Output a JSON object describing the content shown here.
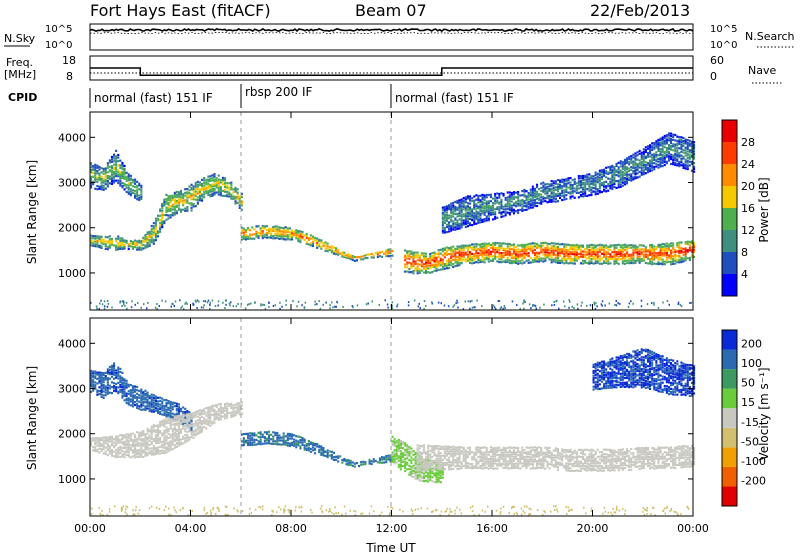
{
  "header": {
    "station": "Fort Hays East (fitACF)",
    "beam": "Beam 07",
    "date": "22/Feb/2013"
  },
  "summary": {
    "nsky_label": "N.Sky",
    "nsky_ticks": [
      "10^5",
      "10^0"
    ],
    "nsearch_label": "N.Search",
    "nsearch_ticks": [
      "10^5",
      "10^0"
    ],
    "freq_label_line1": "Freq.",
    "freq_label_line2": "[MHz]",
    "freq_ticks": [
      "18",
      "8"
    ],
    "nave_label": "Nave",
    "nave_ticks": [
      "60",
      "0"
    ],
    "cpid_label": "CPID",
    "cpid_segments": [
      {
        "label": "normal (fast) 151 IF",
        "start_hour": 0,
        "end_hour": 6
      },
      {
        "label": "rbsp 200 IF",
        "start_hour": 6,
        "end_hour": 12
      },
      {
        "label": "normal (fast) 151 IF",
        "start_hour": 12,
        "end_hour": 24
      }
    ],
    "freq_series": {
      "name": "Freq.",
      "hours": [
        0,
        2,
        2,
        12,
        14,
        14,
        24
      ],
      "values_mhz": [
        13,
        13,
        10,
        10,
        10,
        13,
        13
      ]
    }
  },
  "colors": {
    "power": [
      "#0000ff",
      "#1f4fbf",
      "#3f8f7f",
      "#4faf4f",
      "#f5c800",
      "#ff8c00",
      "#ff3c00",
      "#e80000"
    ],
    "velocity": [
      "#0a2ad6",
      "#2a6ab0",
      "#3c9a60",
      "#6acc3c",
      "#c8c8c0",
      "#d0c070",
      "#f0a000",
      "#f06000",
      "#e00000"
    ]
  },
  "chart_data": [
    {
      "type": "heatmap",
      "ylabel": "Slant Range [km]",
      "xlabel": "Time UT",
      "x_ticks": [
        "00:00",
        "04:00",
        "08:00",
        "12:00",
        "16:00",
        "20:00",
        "00:00"
      ],
      "y_ticks": [
        "1000",
        "2000",
        "3000",
        "4000"
      ],
      "xlim_hours": [
        0,
        24
      ],
      "ylim_km": [
        180,
        4560
      ],
      "colorbar": {
        "label": "Power [dB]",
        "ticks": [
          "28",
          "24",
          "20",
          "16",
          "12",
          "8",
          "4"
        ],
        "range": [
          0,
          30
        ]
      },
      "bands": [
        {
          "name": "evening",
          "hours": [
            0,
            0.5,
            1,
            1.5,
            2,
            2.5,
            3,
            3.5,
            4,
            4.5,
            5,
            5.5,
            6
          ],
          "center_km": [
            1750,
            1700,
            1700,
            1650,
            1650,
            1900,
            2500,
            2600,
            2700,
            2900,
            3000,
            2900,
            2600
          ],
          "width_km": [
            250,
            300,
            350,
            200,
            250,
            500,
            600,
            500,
            600,
            500,
            500,
            400,
            400
          ],
          "value_db": 18
        },
        {
          "name": "upper-evening",
          "hours": [
            0,
            0.5,
            1,
            1.5,
            2
          ],
          "center_km": [
            3200,
            3100,
            3400,
            3000,
            2800
          ],
          "width_km": [
            600,
            500,
            700,
            500,
            400
          ],
          "value_db": 14
        },
        {
          "name": "morning-arc",
          "hours": [
            6,
            7,
            8,
            9,
            10,
            10.5,
            11,
            11.5,
            12
          ],
          "center_km": [
            1900,
            1950,
            1900,
            1700,
            1450,
            1350,
            1400,
            1450,
            1500
          ],
          "width_km": [
            300,
            300,
            300,
            250,
            150,
            120,
            120,
            150,
            200
          ],
          "value_db": 22
        },
        {
          "name": "main-band",
          "hours": [
            12.5,
            13,
            13.5,
            14,
            15,
            16,
            17,
            18,
            19,
            20,
            21,
            22,
            23,
            24
          ],
          "center_km": [
            1300,
            1250,
            1250,
            1350,
            1450,
            1500,
            1450,
            1500,
            1450,
            1450,
            1450,
            1450,
            1450,
            1550
          ],
          "width_km": [
            500,
            500,
            450,
            500,
            450,
            450,
            450,
            450,
            450,
            450,
            450,
            450,
            500,
            450
          ],
          "value_db": 26
        },
        {
          "name": "afternoon-upper",
          "hours": [
            14,
            15,
            16,
            17,
            18,
            19,
            20,
            21,
            22,
            23,
            24
          ],
          "center_km": [
            2200,
            2400,
            2500,
            2600,
            2800,
            2900,
            3000,
            3200,
            3500,
            3800,
            3600
          ],
          "width_km": [
            600,
            700,
            600,
            500,
            500,
            500,
            500,
            600,
            600,
            700,
            700
          ],
          "value_db": 10
        }
      ]
    },
    {
      "type": "heatmap",
      "ylabel": "Slant Range [km]",
      "xlabel": "Time UT",
      "x_ticks": [
        "00:00",
        "04:00",
        "08:00",
        "12:00",
        "16:00",
        "20:00",
        "00:00"
      ],
      "y_ticks": [
        "1000",
        "2000",
        "3000",
        "4000"
      ],
      "xlim_hours": [
        0,
        24
      ],
      "ylim_km": [
        180,
        4560
      ],
      "colorbar": {
        "label": "Velocity [m s⁻¹]",
        "ticks": [
          "200",
          "100",
          "50",
          "15",
          "-15",
          "-50",
          "-100",
          "-200"
        ],
        "range": [
          -250,
          250
        ]
      },
      "bands": [
        {
          "name": "evening-blue",
          "hours": [
            0,
            0.5,
            1,
            1.5,
            2,
            2.5,
            3,
            3.5,
            4
          ],
          "center_km": [
            3200,
            3100,
            3300,
            2900,
            2800,
            2700,
            2600,
            2500,
            2300
          ],
          "width_km": [
            500,
            600,
            700,
            500,
            500,
            400,
            400,
            400,
            400
          ],
          "value_ms": 180
        },
        {
          "name": "evening-grey",
          "hours": [
            0,
            1,
            2,
            3,
            4,
            5,
            6
          ],
          "center_km": [
            1800,
            1750,
            1800,
            2000,
            2200,
            2500,
            2600
          ],
          "width_km": [
            300,
            500,
            600,
            800,
            600,
            400,
            300
          ],
          "value_ms": 0
        },
        {
          "name": "morning-arc",
          "hours": [
            6,
            7,
            8,
            9,
            10,
            10.5,
            11,
            11.5,
            12
          ],
          "center_km": [
            1900,
            1950,
            1900,
            1700,
            1450,
            1350,
            1400,
            1450,
            1500
          ],
          "width_km": [
            300,
            300,
            300,
            250,
            150,
            120,
            120,
            150,
            200
          ],
          "value_ms": 150
        },
        {
          "name": "noon-green",
          "hours": [
            12,
            12.5,
            13,
            13.5,
            14
          ],
          "center_km": [
            1700,
            1500,
            1300,
            1200,
            1150
          ],
          "width_km": [
            600,
            700,
            600,
            500,
            400
          ],
          "value_ms": 40
        },
        {
          "name": "afternoon-grey",
          "hours": [
            13,
            14,
            15,
            16,
            17,
            18,
            19,
            20,
            21,
            22,
            23,
            24
          ],
          "center_km": [
            1500,
            1500,
            1500,
            1500,
            1500,
            1500,
            1450,
            1450,
            1450,
            1500,
            1500,
            1550
          ],
          "width_km": [
            600,
            550,
            500,
            500,
            500,
            500,
            500,
            500,
            500,
            500,
            500,
            500
          ],
          "value_ms": 0
        },
        {
          "name": "late-blue",
          "hours": [
            20,
            21,
            22,
            23,
            24
          ],
          "center_km": [
            3300,
            3400,
            3500,
            3300,
            3200
          ],
          "width_km": [
            600,
            700,
            900,
            800,
            700
          ],
          "value_ms": 200
        }
      ]
    }
  ]
}
